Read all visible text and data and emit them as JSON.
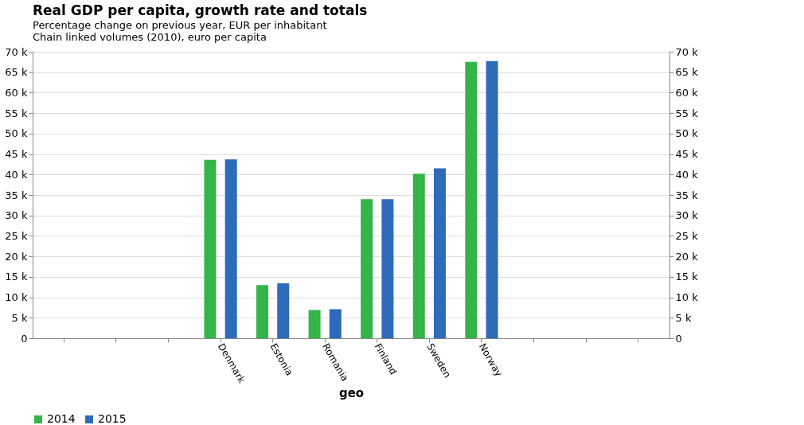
{
  "chart_data": {
    "type": "bar",
    "title": "Real GDP per capita, growth rate and totals",
    "subtitle": "Percentage change on previous year, EUR per inhabitant",
    "annotations": [
      "Chain linked volumes (2010), euro per capita"
    ],
    "xlabel": "geo",
    "categories": [
      null,
      null,
      null,
      "Denmark",
      "Estonia",
      "Romania",
      "Finland",
      "Sweden",
      "Norway",
      null,
      null,
      null
    ],
    "series": [
      {
        "name": "2014",
        "color": "#35b449",
        "values": [
          null,
          null,
          null,
          43600,
          13000,
          6900,
          34000,
          40200,
          67500,
          null,
          null,
          null
        ]
      },
      {
        "name": "2015",
        "color": "#2e6bb8",
        "values": [
          null,
          null,
          null,
          43700,
          13400,
          7100,
          34000,
          41500,
          67700,
          null,
          null,
          null
        ]
      }
    ],
    "ylim": [
      0,
      70000
    ],
    "yticks": [
      0,
      {
        "value": 5000,
        "label": "5 k"
      },
      {
        "value": 10000,
        "label": "10 k"
      },
      {
        "value": 15000,
        "label": "15 k"
      },
      {
        "value": 20000,
        "label": "20 k"
      },
      {
        "value": 25000,
        "label": "25 k"
      },
      {
        "value": 30000,
        "label": "30 k"
      },
      {
        "value": 35000,
        "label": "35 k"
      },
      {
        "value": 40000,
        "label": "40 k"
      },
      {
        "value": 45000,
        "label": "45 k"
      },
      {
        "value": 50000,
        "label": "50 k"
      },
      {
        "value": 55000,
        "label": "55 k"
      },
      {
        "value": 60000,
        "label": "60 k"
      },
      {
        "value": 65000,
        "label": "65 k"
      },
      {
        "value": 70000,
        "label": "70 k"
      }
    ],
    "y2lim": [
      0,
      70000
    ],
    "y2ticks": [
      0,
      {
        "value": 5000,
        "label": "5 k"
      },
      {
        "value": 10000,
        "label": "10 k"
      },
      {
        "value": 15000,
        "label": "15 k"
      },
      {
        "value": 20000,
        "label": "20 k"
      },
      {
        "value": 25000,
        "label": "25 k"
      },
      {
        "value": 30000,
        "label": "30 k"
      },
      {
        "value": 35000,
        "label": "35 k"
      },
      {
        "value": 40000,
        "label": "40 k"
      },
      {
        "value": 45000,
        "label": "45 k"
      },
      {
        "value": 50000,
        "label": "50 k"
      },
      {
        "value": 55000,
        "label": "55 k"
      },
      {
        "value": 60000,
        "label": "60 k"
      },
      {
        "value": 65000,
        "label": "65 k"
      },
      {
        "value": 70000,
        "label": "70 k"
      }
    ],
    "grid": "y",
    "legend": "bottom"
  }
}
